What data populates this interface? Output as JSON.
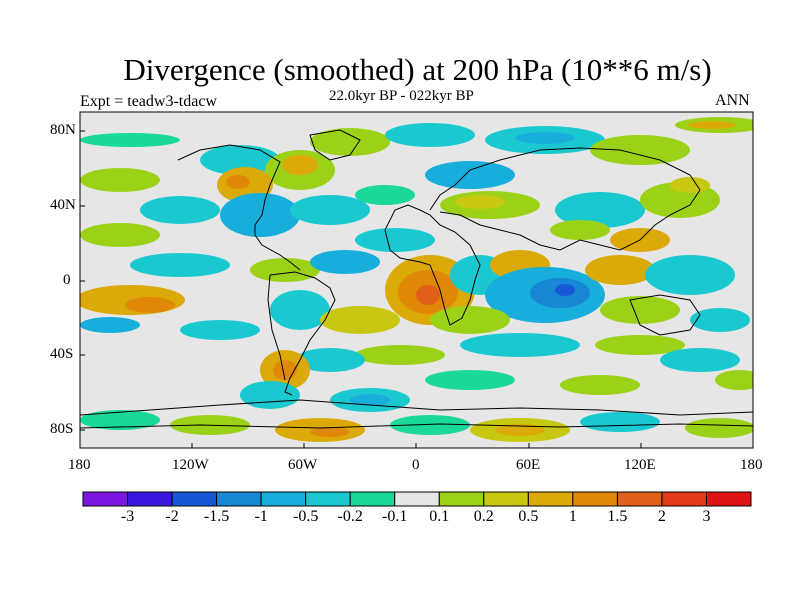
{
  "title": "Divergence (smoothed) at 200 hPa (10**6 m/s)",
  "experiment": "Expt = teadw3-tdacw",
  "subtitle": "22.0kyr BP - 022kyr BP",
  "season": "ANN",
  "latitude_labels": [
    "80N",
    "40N",
    "0",
    "40S",
    "80S"
  ],
  "longitude_labels": [
    "180",
    "120W",
    "60W",
    "0",
    "60E",
    "120E",
    "180"
  ],
  "colorbar": {
    "labels": [
      "-3",
      "-2",
      "-1.5",
      "-1",
      "-0.5",
      "-0.2",
      "-0.1",
      "0.1",
      "0.2",
      "0.5",
      "1",
      "1.5",
      "2",
      "3"
    ],
    "colors": [
      "#7b16e0",
      "#3b17e0",
      "#1857d8",
      "#1a86d6",
      "#18aedb",
      "#1ac9d0",
      "#1ad79a",
      "#e6e6e6",
      "#9bd218",
      "#c8c810",
      "#dcaa08",
      "#e28808",
      "#e06018",
      "#e23a18",
      "#e01414"
    ]
  },
  "colors": {
    "background_fill": "#e6e6e6",
    "coastline": "#000000"
  }
}
